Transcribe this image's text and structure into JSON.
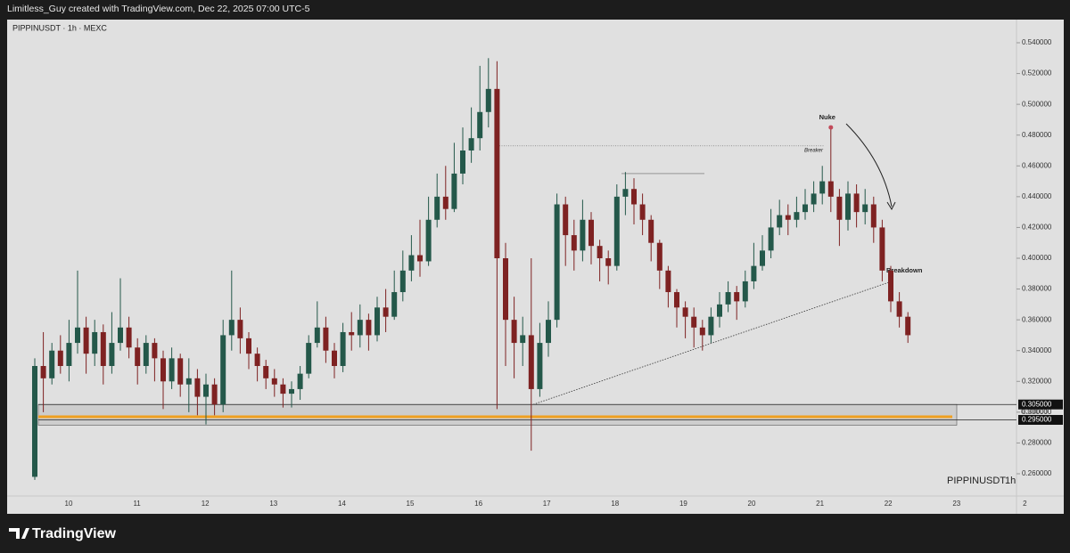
{
  "chart_data": {
    "type": "candlestick",
    "credit": "Limitless_Guy created with TradingView.com, Dec 22, 2025 07:00 UTC-5",
    "title": "PIPPINUSDT · 1h · MEXC",
    "watermark_symbol": "PIPPINUSDT",
    "watermark_interval": "1h",
    "brand": "TradingView",
    "up_color": "#24584a",
    "down_color": "#7e2222",
    "categories": [
      "10",
      "11",
      "12",
      "13",
      "14",
      "15",
      "16",
      "17",
      "18",
      "19",
      "20",
      "21",
      "22",
      "23",
      "2"
    ],
    "ylim": [
      0.26,
      0.54
    ],
    "yticks": [
      {
        "value": 0.26,
        "label": "0.260000"
      },
      {
        "value": 0.28,
        "label": "0.280000"
      },
      {
        "value": 0.3,
        "label": "0.300000"
      },
      {
        "value": 0.32,
        "label": "0.320000"
      },
      {
        "value": 0.34,
        "label": "0.340000"
      },
      {
        "value": 0.36,
        "label": "0.360000"
      },
      {
        "value": 0.38,
        "label": "0.380000"
      },
      {
        "value": 0.4,
        "label": "0.400000"
      },
      {
        "value": 0.42,
        "label": "0.420000"
      },
      {
        "value": 0.44,
        "label": "0.440000"
      },
      {
        "value": 0.46,
        "label": "0.460000"
      },
      {
        "value": 0.48,
        "label": "0.480000"
      },
      {
        "value": 0.5,
        "label": "0.500000"
      },
      {
        "value": 0.52,
        "label": "0.520000"
      },
      {
        "value": 0.54,
        "label": "0.540000"
      }
    ],
    "zone": [
      {
        "value": 0.305,
        "label": "0.305000"
      },
      {
        "value": 0.295,
        "label": "0.295000"
      }
    ],
    "zone_line": 0.297,
    "breaker": {
      "text": "Breaker",
      "value": 0.473
    },
    "high_line": 0.455,
    "nuke": {
      "text": "Nuke",
      "value": 0.485
    },
    "breakdown": {
      "text": "Breakdown"
    },
    "trendline": [
      0.305,
      0.385
    ],
    "ohlc": [
      [
        0.258,
        0.335,
        0.256,
        0.33
      ],
      [
        0.33,
        0.352,
        0.3,
        0.322
      ],
      [
        0.322,
        0.345,
        0.318,
        0.34
      ],
      [
        0.34,
        0.35,
        0.325,
        0.33
      ],
      [
        0.33,
        0.36,
        0.32,
        0.345
      ],
      [
        0.345,
        0.392,
        0.338,
        0.355
      ],
      [
        0.355,
        0.362,
        0.325,
        0.338
      ],
      [
        0.338,
        0.36,
        0.33,
        0.352
      ],
      [
        0.352,
        0.357,
        0.318,
        0.33
      ],
      [
        0.33,
        0.365,
        0.325,
        0.345
      ],
      [
        0.345,
        0.387,
        0.34,
        0.355
      ],
      [
        0.355,
        0.362,
        0.335,
        0.342
      ],
      [
        0.342,
        0.348,
        0.318,
        0.33
      ],
      [
        0.33,
        0.35,
        0.325,
        0.345
      ],
      [
        0.345,
        0.348,
        0.32,
        0.335
      ],
      [
        0.335,
        0.34,
        0.302,
        0.32
      ],
      [
        0.32,
        0.342,
        0.315,
        0.335
      ],
      [
        0.335,
        0.338,
        0.31,
        0.318
      ],
      [
        0.318,
        0.335,
        0.3,
        0.322
      ],
      [
        0.322,
        0.328,
        0.298,
        0.31
      ],
      [
        0.31,
        0.325,
        0.292,
        0.318
      ],
      [
        0.318,
        0.322,
        0.298,
        0.305
      ],
      [
        0.305,
        0.36,
        0.3,
        0.35
      ],
      [
        0.35,
        0.392,
        0.34,
        0.36
      ],
      [
        0.36,
        0.368,
        0.338,
        0.348
      ],
      [
        0.348,
        0.352,
        0.328,
        0.338
      ],
      [
        0.338,
        0.342,
        0.32,
        0.33
      ],
      [
        0.33,
        0.334,
        0.315,
        0.322
      ],
      [
        0.322,
        0.328,
        0.31,
        0.318
      ],
      [
        0.318,
        0.322,
        0.303,
        0.312
      ],
      [
        0.312,
        0.32,
        0.303,
        0.315
      ],
      [
        0.315,
        0.33,
        0.308,
        0.325
      ],
      [
        0.325,
        0.35,
        0.322,
        0.345
      ],
      [
        0.345,
        0.372,
        0.342,
        0.355
      ],
      [
        0.355,
        0.362,
        0.332,
        0.34
      ],
      [
        0.34,
        0.345,
        0.322,
        0.33
      ],
      [
        0.33,
        0.358,
        0.326,
        0.352
      ],
      [
        0.352,
        0.365,
        0.34,
        0.35
      ],
      [
        0.35,
        0.37,
        0.342,
        0.36
      ],
      [
        0.36,
        0.364,
        0.34,
        0.35
      ],
      [
        0.35,
        0.375,
        0.346,
        0.368
      ],
      [
        0.368,
        0.38,
        0.352,
        0.362
      ],
      [
        0.362,
        0.392,
        0.36,
        0.378
      ],
      [
        0.378,
        0.405,
        0.372,
        0.392
      ],
      [
        0.392,
        0.415,
        0.385,
        0.402
      ],
      [
        0.402,
        0.425,
        0.388,
        0.398
      ],
      [
        0.398,
        0.44,
        0.395,
        0.425
      ],
      [
        0.425,
        0.455,
        0.42,
        0.44
      ],
      [
        0.44,
        0.46,
        0.425,
        0.432
      ],
      [
        0.432,
        0.475,
        0.43,
        0.455
      ],
      [
        0.455,
        0.485,
        0.448,
        0.47
      ],
      [
        0.47,
        0.498,
        0.462,
        0.478
      ],
      [
        0.478,
        0.525,
        0.47,
        0.495
      ],
      [
        0.495,
        0.53,
        0.485,
        0.51
      ],
      [
        0.51,
        0.528,
        0.302,
        0.4
      ],
      [
        0.4,
        0.41,
        0.33,
        0.36
      ],
      [
        0.36,
        0.375,
        0.322,
        0.345
      ],
      [
        0.345,
        0.362,
        0.33,
        0.35
      ],
      [
        0.35,
        0.4,
        0.275,
        0.315
      ],
      [
        0.315,
        0.358,
        0.31,
        0.345
      ],
      [
        0.345,
        0.372,
        0.336,
        0.36
      ],
      [
        0.36,
        0.442,
        0.355,
        0.435
      ],
      [
        0.435,
        0.44,
        0.395,
        0.415
      ],
      [
        0.415,
        0.425,
        0.392,
        0.405
      ],
      [
        0.405,
        0.438,
        0.398,
        0.425
      ],
      [
        0.425,
        0.43,
        0.396,
        0.408
      ],
      [
        0.408,
        0.412,
        0.385,
        0.4
      ],
      [
        0.4,
        0.405,
        0.383,
        0.395
      ],
      [
        0.395,
        0.448,
        0.392,
        0.44
      ],
      [
        0.44,
        0.456,
        0.428,
        0.445
      ],
      [
        0.445,
        0.452,
        0.422,
        0.435
      ],
      [
        0.435,
        0.442,
        0.415,
        0.425
      ],
      [
        0.425,
        0.428,
        0.398,
        0.41
      ],
      [
        0.41,
        0.412,
        0.38,
        0.392
      ],
      [
        0.392,
        0.395,
        0.368,
        0.378
      ],
      [
        0.378,
        0.38,
        0.355,
        0.368
      ],
      [
        0.368,
        0.372,
        0.348,
        0.362
      ],
      [
        0.362,
        0.368,
        0.342,
        0.355
      ],
      [
        0.355,
        0.36,
        0.34,
        0.35
      ],
      [
        0.35,
        0.368,
        0.345,
        0.362
      ],
      [
        0.362,
        0.378,
        0.355,
        0.37
      ],
      [
        0.37,
        0.385,
        0.365,
        0.378
      ],
      [
        0.378,
        0.382,
        0.36,
        0.372
      ],
      [
        0.372,
        0.392,
        0.368,
        0.385
      ],
      [
        0.385,
        0.41,
        0.38,
        0.395
      ],
      [
        0.395,
        0.415,
        0.392,
        0.405
      ],
      [
        0.405,
        0.432,
        0.4,
        0.42
      ],
      [
        0.42,
        0.438,
        0.415,
        0.428
      ],
      [
        0.428,
        0.435,
        0.415,
        0.425
      ],
      [
        0.425,
        0.44,
        0.42,
        0.43
      ],
      [
        0.43,
        0.445,
        0.425,
        0.435
      ],
      [
        0.435,
        0.45,
        0.43,
        0.442
      ],
      [
        0.442,
        0.46,
        0.435,
        0.45
      ],
      [
        0.45,
        0.485,
        0.43,
        0.44
      ],
      [
        0.44,
        0.445,
        0.408,
        0.425
      ],
      [
        0.425,
        0.45,
        0.418,
        0.442
      ],
      [
        0.442,
        0.448,
        0.42,
        0.43
      ],
      [
        0.43,
        0.445,
        0.422,
        0.435
      ],
      [
        0.435,
        0.44,
        0.41,
        0.42
      ],
      [
        0.42,
        0.425,
        0.385,
        0.392
      ],
      [
        0.392,
        0.395,
        0.365,
        0.372
      ],
      [
        0.372,
        0.378,
        0.355,
        0.362
      ],
      [
        0.362,
        0.365,
        0.345,
        0.35
      ]
    ]
  }
}
